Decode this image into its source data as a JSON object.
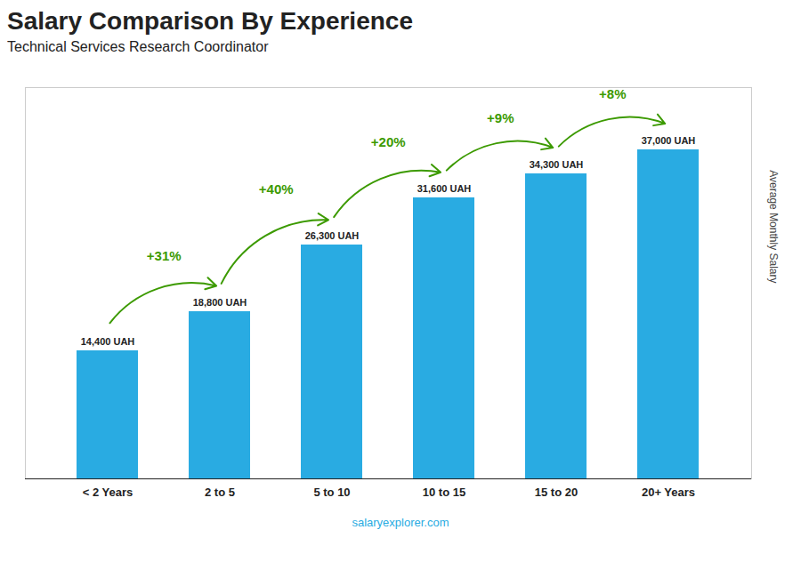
{
  "chart_data": {
    "type": "bar",
    "title": "Salary Comparison By Experience",
    "subtitle": "Technical Services Research Coordinator",
    "categories": [
      "< 2 Years",
      "2 to 5",
      "5 to 10",
      "10 to 15",
      "15 to 20",
      "20+ Years"
    ],
    "values": [
      14400,
      18800,
      26300,
      31600,
      34300,
      37000
    ],
    "value_labels": [
      "14,400 UAH",
      "18,800 UAH",
      "26,300 UAH",
      "31,600 UAH",
      "34,300 UAH",
      "37,000 UAH"
    ],
    "data_labels": true,
    "color": "#29ABE2",
    "ylabel": "Average Monthly Salary",
    "ylim": [
      0,
      44000
    ],
    "yticks": [],
    "tick_labels": "x",
    "grid": false,
    "annotations": [
      {
        "text": "+31%",
        "from": "< 2 Years",
        "to": "2 to 5"
      },
      {
        "text": "+40%",
        "from": "2 to 5",
        "to": "5 to 10"
      },
      {
        "text": "+20%",
        "from": "5 to 10",
        "to": "10 to 15"
      },
      {
        "text": "+9%",
        "from": "10 to 15",
        "to": "15 to 20"
      },
      {
        "text": "+8%",
        "from": "15 to 20",
        "to": "20+ Years"
      }
    ],
    "caption": "salaryexplorer.com"
  }
}
